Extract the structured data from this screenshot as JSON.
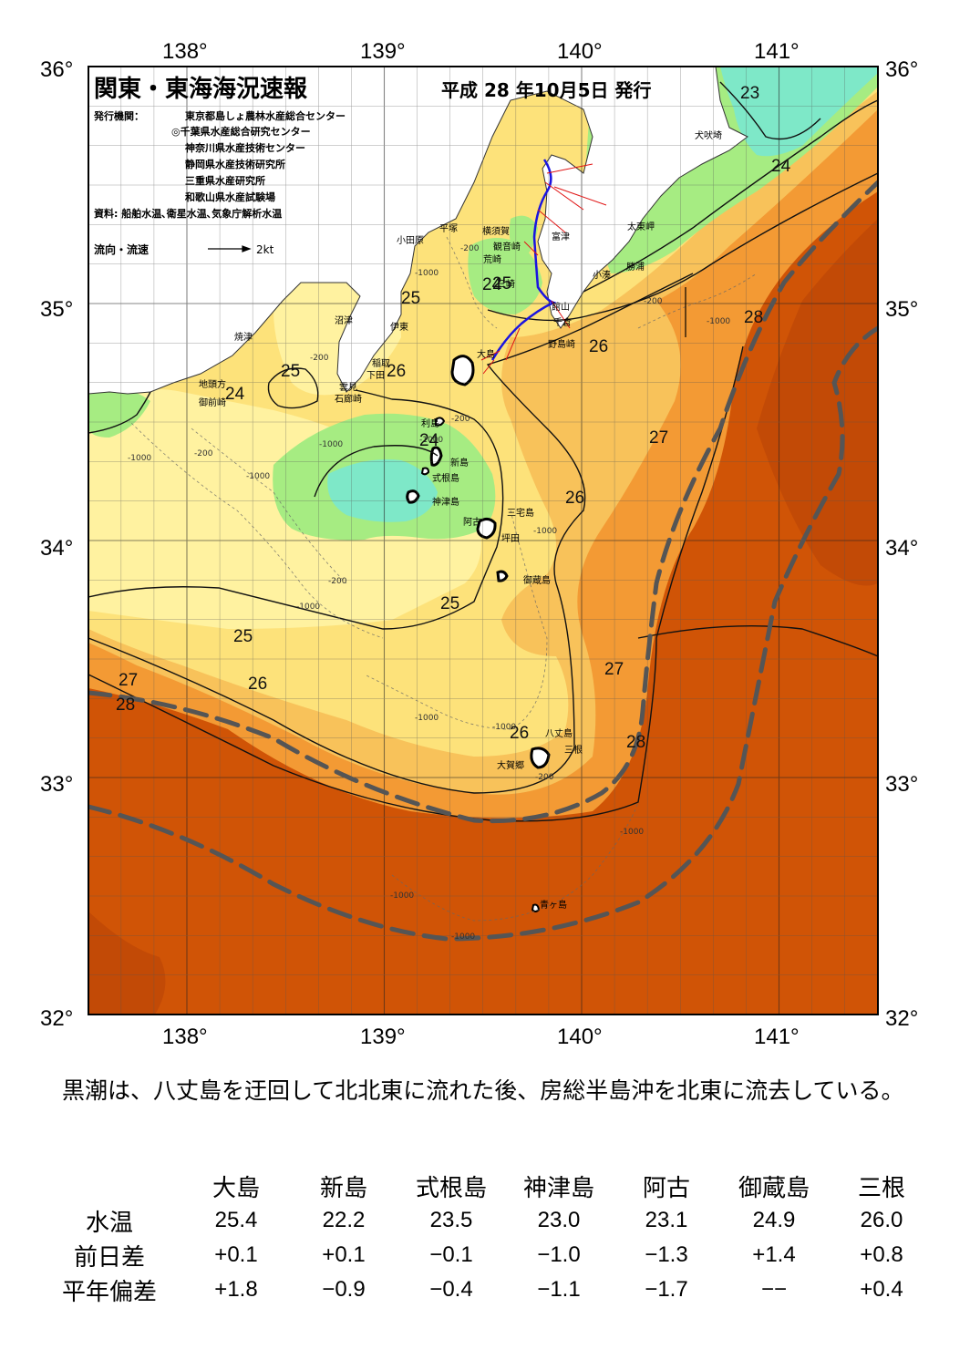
{
  "header": {
    "title": "関東・東海海況速報",
    "issue_date": "平成 28 年10月5日 発行",
    "issuer_label": "発行機関：",
    "issuers": [
      "東京都島しょ農林水産総合センター",
      "◎千葉県水産総合研究センター",
      "神奈川県水産技術センター",
      "静岡県水産技術研究所",
      "三重県水産研究所",
      "和歌山県水産試験場"
    ],
    "source": "資料: 船舶水温､衛星水温､気象庁解析水温",
    "flow_legend": "流向・流速",
    "flow_scale": "2kt"
  },
  "axes": {
    "lon_labels": [
      "138°",
      "139°",
      "140°",
      "141°"
    ],
    "lat_labels": [
      "36°",
      "35°",
      "34°",
      "33°",
      "32°"
    ]
  },
  "isotherm_labels": [
    "23",
    "24",
    "24",
    "24",
    "25",
    "24",
    "25",
    "26",
    "25",
    "26",
    "28",
    "27",
    "26",
    "25",
    "25",
    "26",
    "27",
    "27",
    "28",
    "28",
    "26",
    "28"
  ],
  "places": [
    "犬吠埼",
    "太東岬",
    "勝浦",
    "小湊",
    "館山",
    "千倉",
    "野島崎",
    "富津",
    "横須賀",
    "観音崎",
    "荒崎",
    "三崎",
    "平塚",
    "小田原",
    "大島",
    "利島",
    "新島",
    "式根島",
    "神津島",
    "三宅島",
    "阿古",
    "坪田",
    "御蔵島",
    "八丈島",
    "三根",
    "大賀郷",
    "青ヶ島",
    "沼津",
    "伊東",
    "焼津",
    "稲取",
    "下田",
    "雲見",
    "石廊崎",
    "地頭方",
    "御前崎"
  ],
  "depth_labels": [
    "-200",
    "-1000"
  ],
  "colors": {
    "c23": "#7ee8c8",
    "c24": "#a6ec82",
    "c25": "#fde27a",
    "c25b": "#fff2a0",
    "c26": "#f8c25a",
    "c27": "#f39a34",
    "c28": "#d05406",
    "c29": "#c24a06",
    "land": "#ffffff",
    "kuroshio_axis": "#555555",
    "ship_track": "#1a14e0"
  },
  "summary": "黒潮は、八丈島を迂回して北北東に流れた後、房総半島沖を北東に流去している。",
  "table": {
    "stations": [
      "大島",
      "新島",
      "式根島",
      "神津島",
      "阿古",
      "御蔵島",
      "三根"
    ],
    "rows": [
      {
        "label": "水温",
        "values": [
          "25.4",
          "22.2",
          "23.5",
          "23.0",
          "23.1",
          "24.9",
          "26.0"
        ]
      },
      {
        "label": "前日差",
        "values": [
          "+0.1",
          "+0.1",
          "−0.1",
          "−1.0",
          "−1.3",
          "+1.4",
          "+0.8"
        ]
      },
      {
        "label": "平年偏差",
        "values": [
          "+1.8",
          "−0.9",
          "−0.4",
          "−1.1",
          "−1.7",
          "−−",
          "+0.4"
        ]
      }
    ]
  }
}
